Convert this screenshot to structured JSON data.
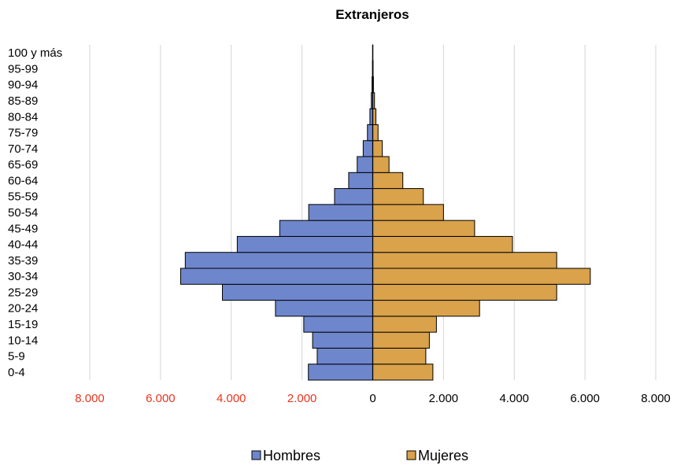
{
  "chart_data": {
    "type": "bar",
    "orientation": "horizontal",
    "title": "Extranjeros",
    "categories": [
      "0-4",
      "5-9",
      "10-14",
      "15-19",
      "20-24",
      "25-29",
      "30-34",
      "35-39",
      "40-44",
      "45-49",
      "50-54",
      "55-59",
      "60-64",
      "65-69",
      "70-74",
      "75-79",
      "80-84",
      "85-89",
      "90-94",
      "95-99",
      "100 y más"
    ],
    "series": [
      {
        "name": "Hombres",
        "color": "#6e86cc",
        "values": [
          1820,
          1570,
          1700,
          1950,
          2750,
          4250,
          5430,
          5300,
          3830,
          2630,
          1810,
          1080,
          680,
          440,
          270,
          150,
          80,
          40,
          20,
          8,
          3
        ]
      },
      {
        "name": "Mujeres",
        "color": "#d9a24b",
        "values": [
          1700,
          1500,
          1600,
          1800,
          3020,
          5200,
          6150,
          5200,
          3950,
          2880,
          2000,
          1430,
          850,
          460,
          270,
          150,
          90,
          50,
          20,
          10,
          3
        ]
      }
    ],
    "xlim": [
      -8000,
      8000
    ],
    "x_ticks": [
      -8000,
      -6000,
      -4000,
      -2000,
      0,
      2000,
      4000,
      6000,
      8000
    ],
    "x_tick_labels": [
      "8.000",
      "6.000",
      "4.000",
      "2.000",
      "0",
      "2.000",
      "4.000",
      "6.000",
      "8.000"
    ],
    "negative_tick_color": "#e8351f",
    "positive_tick_color": "#000000",
    "grid": "vertical",
    "legend_position": "bottom"
  }
}
